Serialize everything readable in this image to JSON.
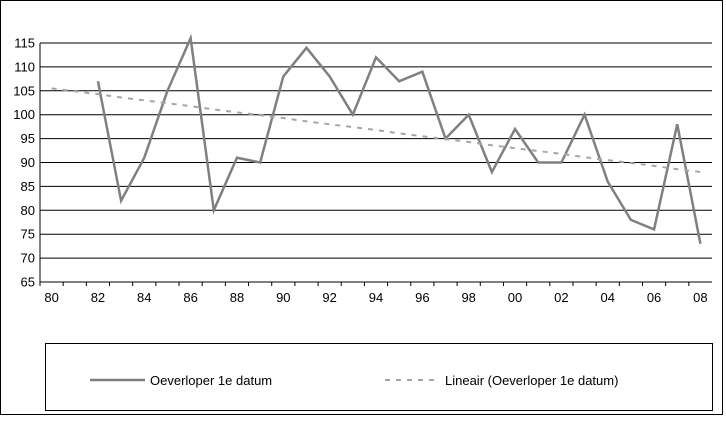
{
  "chart_data": {
    "type": "line",
    "categories": [
      "80",
      null,
      "82",
      null,
      "84",
      null,
      "86",
      null,
      "88",
      null,
      "90",
      null,
      "92",
      null,
      "94",
      null,
      "96",
      null,
      "98",
      null,
      "00",
      null,
      "02",
      null,
      "04",
      null,
      "06",
      null,
      "08"
    ],
    "series": [
      {
        "name": "Oeverloper 1e datum",
        "color": "#808080",
        "dash": false,
        "values": [
          null,
          null,
          107,
          82,
          91,
          105,
          116,
          80,
          91,
          90,
          108,
          114,
          108,
          100,
          112,
          107,
          109,
          95,
          100,
          88,
          97,
          90,
          90,
          100,
          86,
          78,
          76,
          98,
          73
        ]
      },
      {
        "name": "Lineair (Oeverloper 1e datum)",
        "color": "#a6a6a6",
        "dash": true,
        "values": [
          105.5,
          104.9,
          104.3,
          103.6,
          103.0,
          102.4,
          101.8,
          101.1,
          100.5,
          99.9,
          99.3,
          98.6,
          98.0,
          97.4,
          96.8,
          96.1,
          95.5,
          94.9,
          94.3,
          93.6,
          93.0,
          92.4,
          91.8,
          91.1,
          90.5,
          89.9,
          89.3,
          88.6,
          88.0
        ]
      }
    ],
    "ylim": [
      65,
      115
    ],
    "yticks": [
      65,
      70,
      75,
      80,
      85,
      90,
      95,
      100,
      105,
      110,
      115
    ],
    "grid": true,
    "legend": "bottom"
  }
}
